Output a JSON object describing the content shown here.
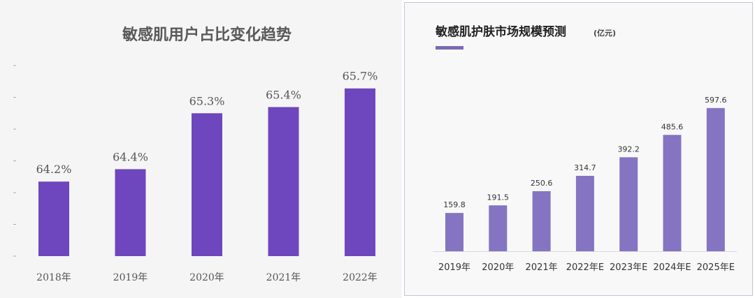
{
  "chart_data": [
    {
      "type": "bar",
      "title": "敏感肌用户占比变化趋势",
      "categories": [
        "2018年",
        "2019年",
        "2020年",
        "2021年",
        "2022年"
      ],
      "values": [
        64.2,
        64.4,
        65.3,
        65.4,
        65.7
      ],
      "value_labels": [
        "64.2%",
        "64.4%",
        "65.3%",
        "65.4%",
        "65.7%"
      ],
      "ylim": [
        63.0,
        66.0
      ],
      "grid": false,
      "bar_color": "#6e46be"
    },
    {
      "type": "bar",
      "title": "敏感肌护肤市场规模预测",
      "unit": "(亿元)",
      "categories": [
        "2019年",
        "2020年",
        "2021年",
        "2022年E",
        "2023年E",
        "2024年E",
        "2025年E"
      ],
      "values": [
        159.8,
        191.5,
        250.6,
        314.7,
        392.2,
        485.6,
        597.6
      ],
      "value_labels": [
        "159.8",
        "191.5",
        "250.6",
        "314.7",
        "392.2",
        "485.6",
        "597.6"
      ],
      "ylim": [
        0,
        650
      ],
      "grid": false,
      "bar_color": "#8574c2",
      "accent_color": "#7c68b8"
    }
  ]
}
